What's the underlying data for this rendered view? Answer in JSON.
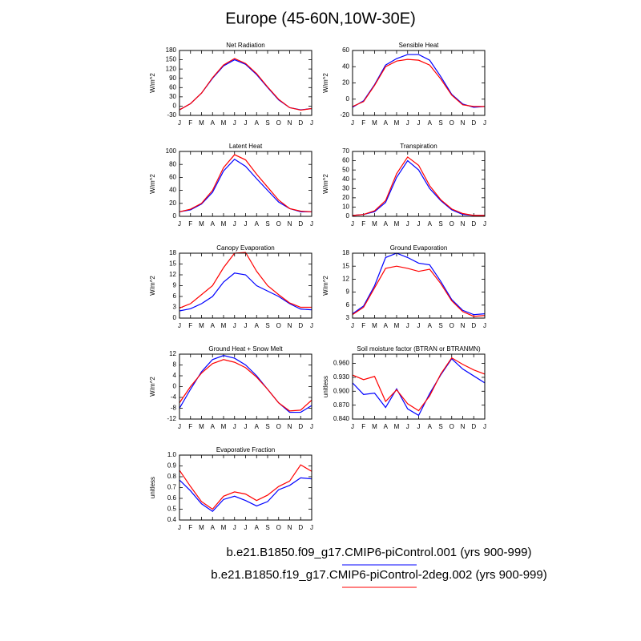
{
  "title": "Europe (45-60N,10W-30E)",
  "legend": [
    {
      "name": "b.e21.B1850.f09_g17.CMIP6-piControl.001 (yrs 900-999)",
      "color": "#0000ff"
    },
    {
      "name": "b.e21.B1850.f19_g17.CMIP6-piControl-2deg.002 (yrs 900-999)",
      "color": "#ff0000"
    }
  ],
  "chart_data": [
    {
      "type": "line",
      "title": "Net Radiation",
      "ylabel": "W/m^2",
      "categories": [
        "J",
        "F",
        "M",
        "A",
        "M",
        "J",
        "J",
        "A",
        "S",
        "O",
        "N",
        "D",
        "J"
      ],
      "ylim": [
        -30,
        180
      ],
      "yticks": [
        -30,
        0,
        30,
        60,
        90,
        120,
        150,
        180
      ],
      "series": [
        {
          "color": "#0000ff",
          "values": [
            -12,
            8,
            42,
            90,
            130,
            150,
            135,
            102,
            60,
            20,
            -5,
            -12,
            -8
          ]
        },
        {
          "color": "#ff0000",
          "values": [
            -12,
            8,
            42,
            92,
            133,
            154,
            138,
            105,
            62,
            22,
            -5,
            -13,
            -8
          ]
        }
      ]
    },
    {
      "type": "line",
      "title": "Sensible Heat",
      "ylabel": "W/m^2",
      "categories": [
        "J",
        "F",
        "M",
        "A",
        "M",
        "J",
        "J",
        "A",
        "S",
        "O",
        "N",
        "D",
        "J"
      ],
      "ylim": [
        -20,
        60
      ],
      "yticks": [
        -20,
        0,
        20,
        40,
        60
      ],
      "series": [
        {
          "color": "#0000ff",
          "values": [
            -10,
            -2,
            18,
            42,
            50,
            55,
            55,
            48,
            28,
            6,
            -6,
            -10,
            -9
          ]
        },
        {
          "color": "#ff0000",
          "values": [
            -9,
            -3,
            17,
            40,
            47,
            49,
            48,
            42,
            25,
            5,
            -7,
            -9,
            -9
          ]
        }
      ]
    },
    {
      "type": "line",
      "title": "Latent Heat",
      "ylabel": "W/m^2",
      "categories": [
        "J",
        "F",
        "M",
        "A",
        "M",
        "J",
        "J",
        "A",
        "S",
        "O",
        "N",
        "D",
        "J"
      ],
      "ylim": [
        0,
        100
      ],
      "yticks": [
        0,
        20,
        40,
        60,
        80,
        100
      ],
      "series": [
        {
          "color": "#0000ff",
          "values": [
            7,
            10,
            19,
            37,
            70,
            88,
            77,
            58,
            40,
            22,
            12,
            7,
            7
          ]
        },
        {
          "color": "#ff0000",
          "values": [
            7,
            11,
            20,
            40,
            75,
            95,
            87,
            65,
            45,
            25,
            12,
            8,
            7
          ]
        }
      ]
    },
    {
      "type": "line",
      "title": "Transpiration",
      "ylabel": "W/m^2",
      "categories": [
        "J",
        "F",
        "M",
        "A",
        "M",
        "J",
        "J",
        "A",
        "S",
        "O",
        "N",
        "D",
        "J"
      ],
      "ylim": [
        0,
        70
      ],
      "yticks": [
        0,
        10,
        20,
        30,
        40,
        50,
        60,
        70
      ],
      "series": [
        {
          "color": "#0000ff",
          "values": [
            1,
            2,
            5,
            15,
            42,
            60,
            50,
            30,
            17,
            7,
            2,
            1,
            1
          ]
        },
        {
          "color": "#ff0000",
          "values": [
            1,
            2,
            6,
            17,
            46,
            64,
            55,
            33,
            18,
            8,
            3,
            1,
            1
          ]
        }
      ]
    },
    {
      "type": "line",
      "title": "Canopy Evaporation",
      "ylabel": "W/m^2",
      "categories": [
        "J",
        "F",
        "M",
        "A",
        "M",
        "J",
        "J",
        "A",
        "S",
        "O",
        "N",
        "D",
        "J"
      ],
      "ylim": [
        0,
        18
      ],
      "yticks": [
        0,
        3,
        6,
        9,
        12,
        15,
        18
      ],
      "series": [
        {
          "color": "#0000ff",
          "values": [
            2,
            2.6,
            4,
            6,
            10,
            12.5,
            12,
            9,
            7.5,
            6,
            4,
            2.5,
            2.3
          ]
        },
        {
          "color": "#ff0000",
          "values": [
            2.8,
            4,
            6.5,
            9,
            14,
            18,
            18.2,
            13,
            9,
            6.5,
            4.2,
            3,
            3
          ]
        }
      ]
    },
    {
      "type": "line",
      "title": "Ground Evaporation",
      "ylabel": "W/m^2",
      "categories": [
        "J",
        "F",
        "M",
        "A",
        "M",
        "J",
        "J",
        "A",
        "S",
        "O",
        "N",
        "D",
        "J"
      ],
      "ylim": [
        3,
        18
      ],
      "yticks": [
        3,
        6,
        9,
        12,
        15,
        18
      ],
      "series": [
        {
          "color": "#0000ff",
          "values": [
            4,
            5.8,
            10.5,
            17,
            18,
            17,
            15.7,
            15.3,
            11.5,
            7.3,
            4.8,
            3.8,
            4
          ]
        },
        {
          "color": "#ff0000",
          "values": [
            3.8,
            5.5,
            10,
            14.5,
            15,
            14.5,
            13.8,
            14.3,
            11,
            7,
            4.5,
            3.4,
            3.6
          ]
        }
      ]
    },
    {
      "type": "line",
      "title": "Ground Heat + Snow Melt",
      "ylabel": "W/m^2",
      "categories": [
        "J",
        "F",
        "M",
        "A",
        "M",
        "J",
        "J",
        "A",
        "S",
        "O",
        "N",
        "D",
        "J"
      ],
      "ylim": [
        -12,
        12
      ],
      "yticks": [
        -12,
        -8,
        -4,
        0,
        4,
        8,
        12
      ],
      "series": [
        {
          "color": "#0000ff",
          "values": [
            -8,
            -1,
            5.5,
            10,
            11.5,
            10.5,
            8,
            4,
            -1,
            -6,
            -9.5,
            -9.5,
            -7
          ]
        },
        {
          "color": "#ff0000",
          "values": [
            -6,
            0,
            5,
            8.5,
            10,
            9,
            7,
            3.5,
            -1,
            -6,
            -9,
            -8.7,
            -5
          ]
        }
      ]
    },
    {
      "type": "line",
      "title": "Soil moisture factor (BTRAN or BTRANMN)",
      "ylabel": "unitless",
      "categories": [
        "J",
        "F",
        "M",
        "A",
        "M",
        "J",
        "J",
        "A",
        "S",
        "O",
        "N",
        "D",
        "J"
      ],
      "ylim": [
        0.84,
        0.98
      ],
      "yticks": [
        {
          "value": 0.84,
          "label": "0.840"
        },
        {
          "value": 0.87,
          "label": "0.870"
        },
        {
          "value": 0.9,
          "label": "0.900"
        },
        {
          "value": 0.93,
          "label": "0.930"
        },
        {
          "value": 0.96,
          "label": "0.960"
        }
      ],
      "series": [
        {
          "color": "#0000ff",
          "values": [
            0.918,
            0.893,
            0.896,
            0.865,
            0.905,
            0.862,
            0.848,
            0.895,
            0.935,
            0.97,
            0.948,
            0.933,
            0.918
          ]
        },
        {
          "color": "#ff0000",
          "values": [
            0.935,
            0.925,
            0.932,
            0.878,
            0.903,
            0.873,
            0.858,
            0.89,
            0.937,
            0.972,
            0.958,
            0.946,
            0.937
          ]
        }
      ]
    },
    {
      "type": "line",
      "title": "Evaporative Fraction",
      "ylabel": "unitless",
      "categories": [
        "J",
        "F",
        "M",
        "A",
        "M",
        "J",
        "J",
        "A",
        "S",
        "O",
        "N",
        "D",
        "J"
      ],
      "ylim": [
        0.4,
        1.0
      ],
      "yticks": [
        0.4,
        0.5,
        0.6,
        0.7,
        0.8,
        0.9,
        {
          "value": 1,
          "label": "1.0"
        }
      ],
      "series": [
        {
          "color": "#0000ff",
          "values": [
            0.77,
            0.67,
            0.55,
            0.48,
            0.59,
            0.62,
            0.58,
            0.53,
            0.57,
            0.68,
            0.72,
            0.79,
            0.78
          ]
        },
        {
          "color": "#ff0000",
          "values": [
            0.86,
            0.71,
            0.57,
            0.5,
            0.62,
            0.66,
            0.64,
            0.58,
            0.63,
            0.71,
            0.76,
            0.91,
            0.85
          ]
        }
      ]
    }
  ]
}
